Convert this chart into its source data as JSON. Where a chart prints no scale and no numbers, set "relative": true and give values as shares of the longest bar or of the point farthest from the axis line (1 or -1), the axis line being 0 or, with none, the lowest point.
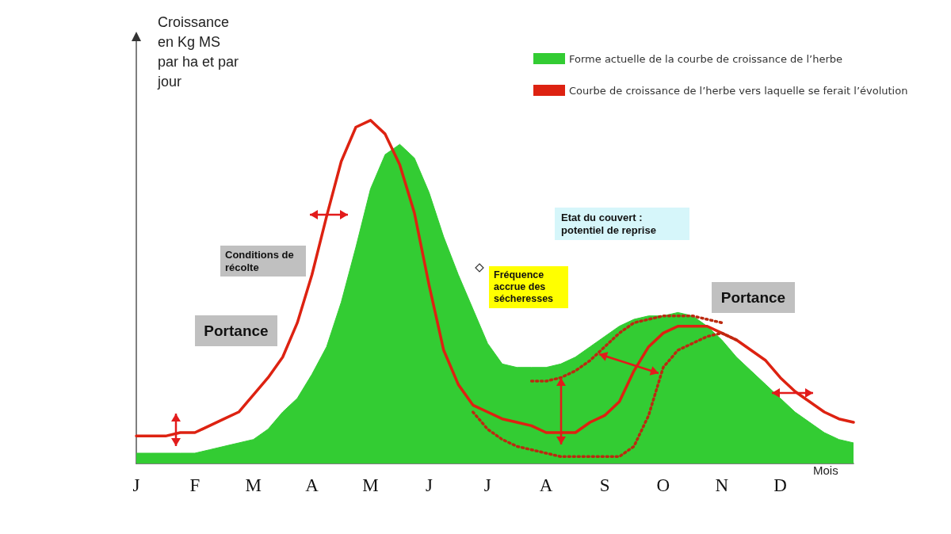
{
  "chart_data": {
    "type": "area",
    "relative": true,
    "xlabel": "Mois",
    "ylabel": "Croissance en Kg MS par ha et par jour",
    "categories": [
      "J",
      null,
      null,
      null,
      "F",
      null,
      null,
      null,
      "M",
      null,
      null,
      null,
      "A",
      null,
      null,
      null,
      "M",
      null,
      null,
      null,
      "J",
      null,
      null,
      null,
      "J",
      null,
      null,
      null,
      "A",
      null,
      null,
      null,
      "S",
      null,
      null,
      null,
      "O",
      null,
      null,
      null,
      "N",
      null,
      null,
      null,
      "D",
      null,
      null,
      null,
      null,
      null
    ],
    "tick_labels": "x",
    "grid": false,
    "legend": "top right",
    "marker": "none",
    "series": [
      {
        "type": "area",
        "name": "Forme actuelle de la courbe de croissance de l’herbe",
        "color": "#33cc33",
        "values": [
          0.03,
          0.03,
          0.03,
          0.03,
          0.03,
          0.04,
          0.05,
          0.06,
          0.07,
          0.1,
          0.15,
          0.19,
          0.26,
          0.34,
          0.47,
          0.63,
          0.8,
          0.9,
          0.93,
          0.89,
          0.79,
          0.66,
          0.55,
          0.45,
          0.35,
          0.29,
          0.28,
          0.28,
          0.28,
          0.29,
          0.31,
          0.34,
          0.37,
          0.4,
          0.42,
          0.43,
          0.43,
          0.44,
          0.43,
          0.4,
          0.36,
          0.31,
          0.27,
          0.23,
          0.19,
          0.15,
          0.12,
          0.09,
          0.07,
          0.06
        ]
      },
      {
        "type": "line",
        "name": "Courbe de croissance de l’herbe vers laquelle se ferait l’évolution",
        "color": "#dd2211",
        "line_style": "solid",
        "values": [
          0.08,
          0.08,
          0.08,
          0.09,
          0.09,
          0.11,
          0.13,
          0.15,
          0.2,
          0.25,
          0.31,
          0.41,
          0.55,
          0.72,
          0.88,
          0.98,
          1,
          0.96,
          0.87,
          0.73,
          0.52,
          0.33,
          0.23,
          0.17,
          0.15,
          0.13,
          0.12,
          0.11,
          0.09,
          0.09,
          0.09,
          0.12,
          0.14,
          0.18,
          0.27,
          0.34,
          0.38,
          0.4,
          0.4,
          0.4,
          0.38,
          0.36,
          0.33,
          0.3,
          0.25,
          0.21,
          0.18,
          0.15,
          0.13,
          0.12
        ]
      },
      {
        "type": "line",
        "color": "#bb2a10",
        "line_style": "dotted",
        "values": [
          null,
          null,
          null,
          null,
          null,
          null,
          null,
          null,
          null,
          null,
          null,
          null,
          null,
          null,
          null,
          null,
          null,
          null,
          null,
          null,
          null,
          null,
          null,
          0.15,
          0.1,
          0.07,
          0.05,
          0.04,
          0.03,
          0.02,
          0.02,
          0.02,
          0.02,
          0.02,
          0.05,
          0.14,
          0.28,
          0.33,
          0.35,
          0.37,
          0.38,
          0.36,
          null,
          null,
          null,
          null,
          null,
          null,
          null,
          null
        ]
      },
      {
        "type": "line",
        "color": "#bb2a10",
        "line_style": "dotted",
        "values": [
          null,
          null,
          null,
          null,
          null,
          null,
          null,
          null,
          null,
          null,
          null,
          null,
          null,
          null,
          null,
          null,
          null,
          null,
          null,
          null,
          null,
          null,
          null,
          null,
          null,
          null,
          null,
          0.24,
          0.24,
          0.25,
          0.27,
          0.3,
          0.34,
          0.38,
          0.41,
          0.42,
          0.43,
          0.43,
          0.43,
          0.42,
          0.41,
          null,
          null,
          null,
          null,
          null,
          null,
          null,
          null,
          null
        ]
      }
    ],
    "annotations": [
      "Conditions de récolte",
      "Portance",
      "Fréquence accrue des sécheresses",
      "Etat du couvert : potentiel de reprise",
      "Portance"
    ]
  }
}
